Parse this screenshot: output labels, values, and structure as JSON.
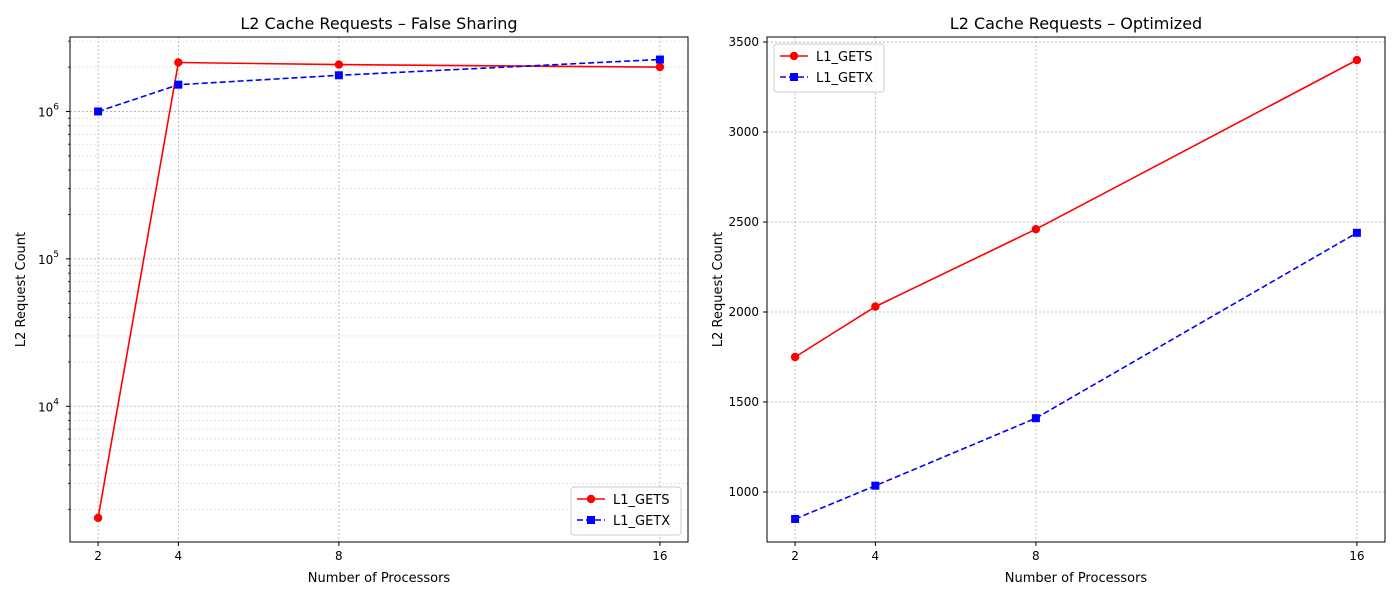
{
  "chart_data": [
    {
      "type": "line",
      "title": "L2 Cache Requests – False Sharing",
      "xlabel": "Number of Processors",
      "ylabel": "L2 Request Count",
      "x": [
        2,
        4,
        8,
        16
      ],
      "x_ticks": [
        "2",
        "4",
        "8",
        "16"
      ],
      "yscale": "log",
      "ylim": [
        1200,
        3200000
      ],
      "y_ticks": [
        {
          "base": "10",
          "exp": "4",
          "value": 10000
        },
        {
          "base": "10",
          "exp": "5",
          "value": 100000
        },
        {
          "base": "10",
          "exp": "6",
          "value": 1000000
        }
      ],
      "grid": true,
      "legend_position": "lower-right",
      "series": [
        {
          "name": "L1_GETS",
          "values": [
            1750,
            2150000,
            2080000,
            2000000
          ],
          "color": "#ff0000",
          "marker": "circle",
          "linestyle": "solid"
        },
        {
          "name": "L1_GETX",
          "values": [
            1000000,
            1520000,
            1760000,
            2250000
          ],
          "color": "#0000ff",
          "marker": "square",
          "linestyle": "dashed"
        }
      ]
    },
    {
      "type": "line",
      "title": "L2 Cache Requests – Optimized",
      "xlabel": "Number of Processors",
      "ylabel": "L2 Request Count",
      "x": [
        2,
        4,
        8,
        16
      ],
      "x_ticks": [
        "2",
        "4",
        "8",
        "16"
      ],
      "yscale": "linear",
      "ylim": [
        722,
        3528
      ],
      "y_ticks": [
        {
          "label": "1000",
          "value": 1000
        },
        {
          "label": "1500",
          "value": 1500
        },
        {
          "label": "2000",
          "value": 2000
        },
        {
          "label": "2500",
          "value": 2500
        },
        {
          "label": "3000",
          "value": 3000
        },
        {
          "label": "3500",
          "value": 3500
        }
      ],
      "grid": true,
      "legend_position": "upper-left",
      "series": [
        {
          "name": "L1_GETS",
          "values": [
            1750,
            2030,
            2460,
            3400
          ],
          "color": "#ff0000",
          "marker": "circle",
          "linestyle": "solid"
        },
        {
          "name": "L1_GETX",
          "values": [
            850,
            1035,
            1410,
            2440
          ],
          "color": "#0000ff",
          "marker": "square",
          "linestyle": "dashed"
        }
      ]
    }
  ]
}
